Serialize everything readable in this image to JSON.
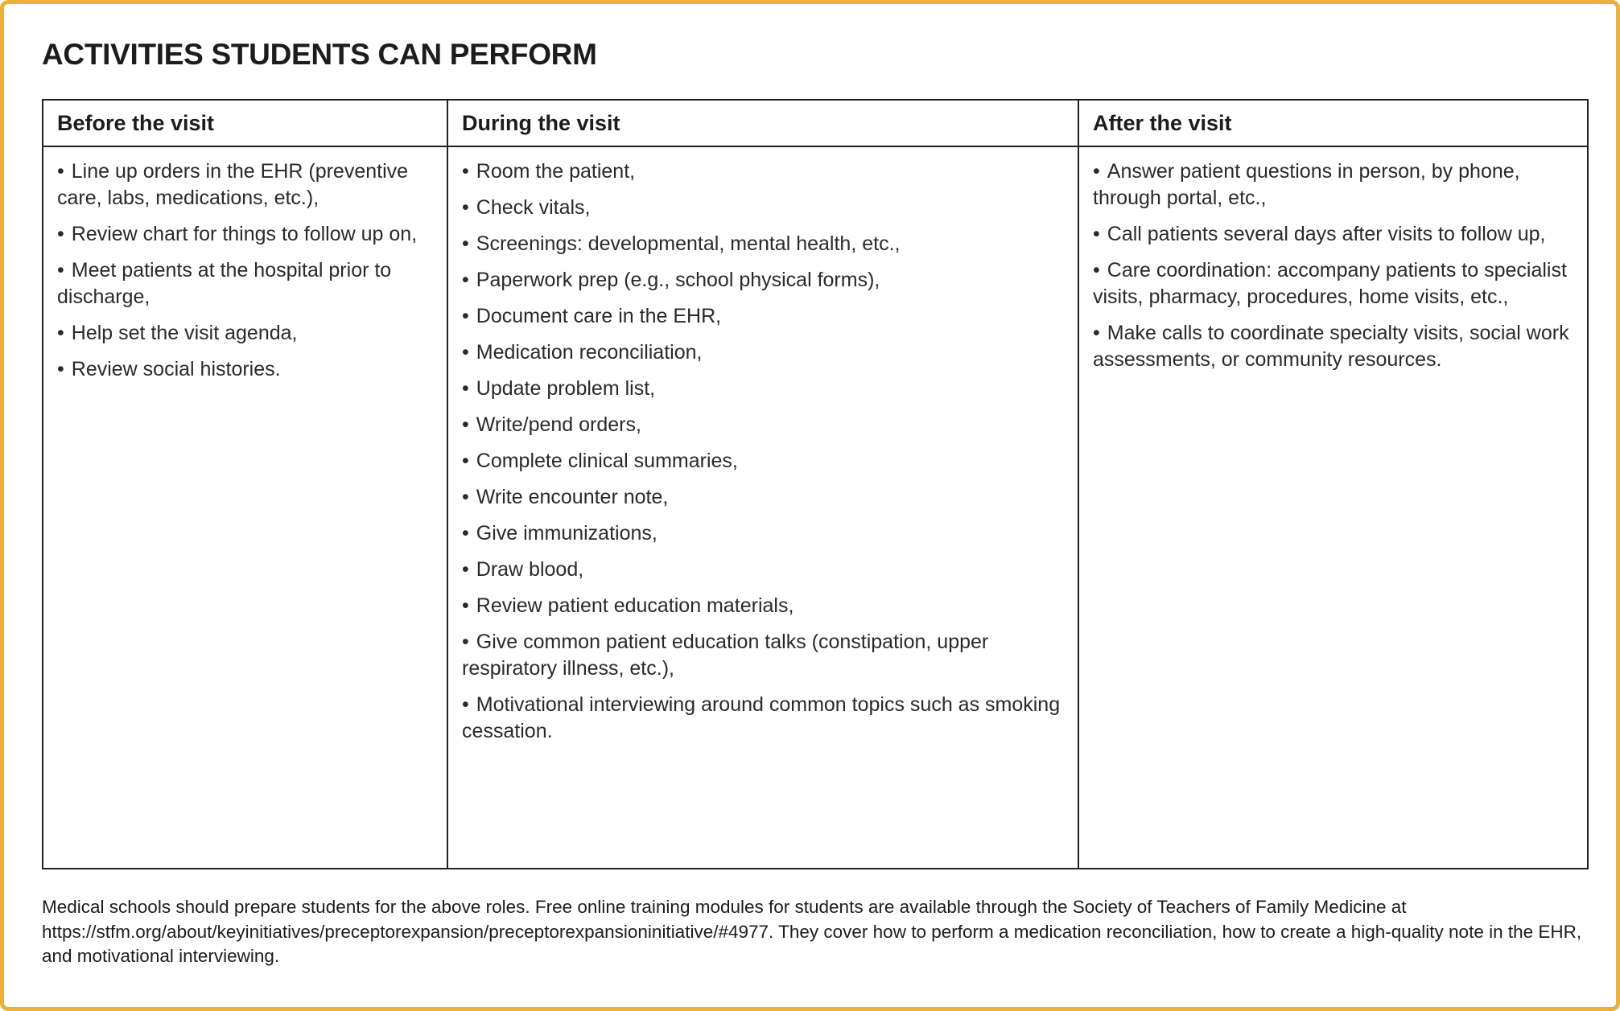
{
  "page": {
    "title": "ACTIVITIES STUDENTS CAN PERFORM"
  },
  "colors": {
    "accent_border": "#E9B13C",
    "table_line": "#231F20",
    "text": "#231F20"
  },
  "table": {
    "bullet": "•",
    "columns": [
      {
        "header": "Before the visit",
        "items": [
          "Line up orders in the EHR (preventive care, labs, medications, etc.),",
          "Review chart for things to follow up on,",
          "Meet patients at the hospital prior to discharge,",
          "Help set the visit agenda,",
          "Review social histories."
        ]
      },
      {
        "header": "During the visit",
        "items": [
          "Room the patient,",
          "Check vitals,",
          "Screenings: developmental, mental health, etc.,",
          "Paperwork prep (e.g., school physical forms),",
          "Document care in the EHR,",
          "Medication reconciliation,",
          "Update problem list,",
          "Write/pend orders,",
          "Complete clinical summaries,",
          "Write encounter note,",
          "Give immunizations,",
          "Draw blood,",
          "Review patient education materials,",
          "Give common patient education talks (constipation, upper respiratory illness, etc.),",
          "Motivational interviewing around common topics such as smoking cessation."
        ]
      },
      {
        "header": "After the visit",
        "items": [
          "Answer patient questions in person, by phone, through portal, etc.,",
          "Call patients several days after visits to follow up,",
          "Care coordination: accompany patients to specialist visits, pharmacy, procedures, home visits, etc.,",
          "Make calls to coordinate specialty visits, social work assessments, or community resources."
        ]
      }
    ]
  },
  "footnote": "Medical schools should prepare students for the above roles. Free online training modules for students are available through the Society of Teachers of Family Medicine at https://stfm.org/about/keyinitiatives/preceptorexpansion/preceptorexpansioninitiative/#4977. They cover how to perform a medication reconciliation, how to create a high-quality note in the EHR, and motivational interviewing."
}
